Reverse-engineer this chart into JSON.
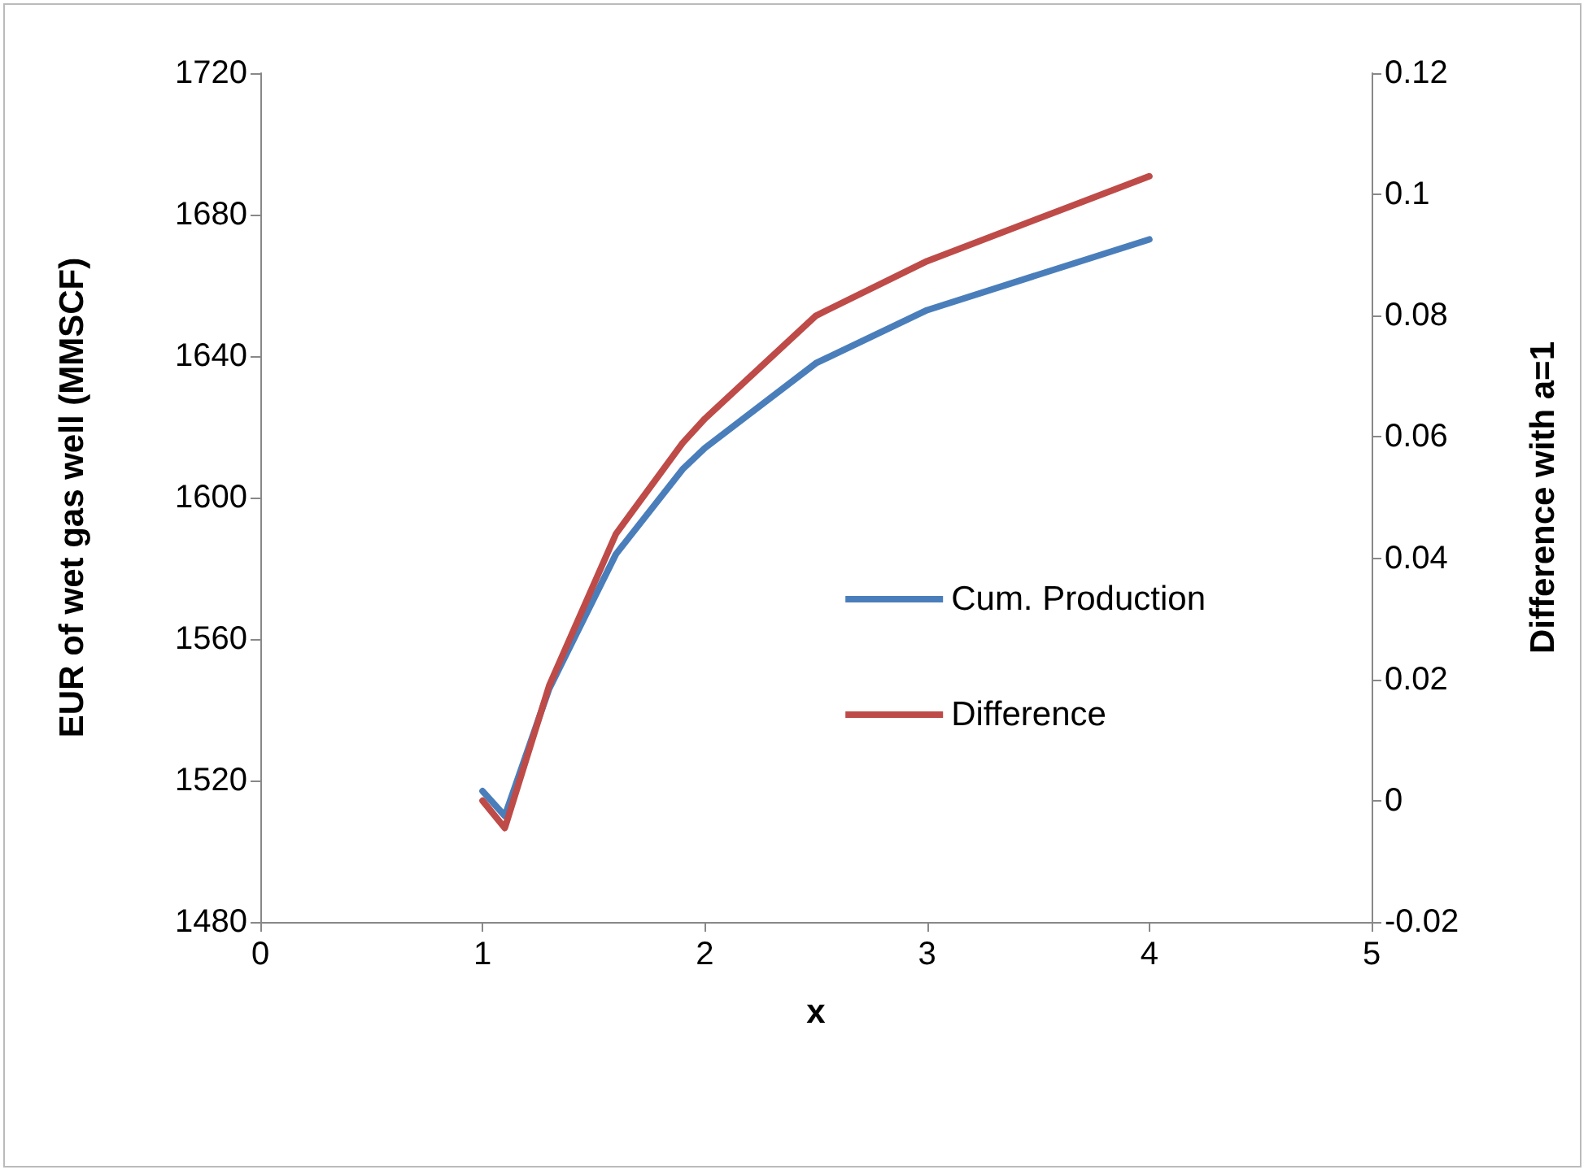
{
  "chart_data": {
    "type": "line",
    "xlabel": "x",
    "ylabel": "EUR of wet gas well (MMSCF)",
    "y2label": "Difference with a=1",
    "xlim": [
      0,
      5
    ],
    "xticks": [
      0,
      1,
      2,
      3,
      4,
      5
    ],
    "ylim": [
      1480,
      1720
    ],
    "yticks": [
      1480,
      1520,
      1560,
      1600,
      1640,
      1680,
      1720
    ],
    "y2lim": [
      -0.02,
      0.12
    ],
    "y2ticks": [
      -0.02,
      0,
      0.02,
      0.04,
      0.06,
      0.08,
      0.1,
      0.12
    ],
    "x": [
      1,
      1.1,
      1.3,
      1.6,
      1.9,
      2,
      2.5,
      3,
      4
    ],
    "series": [
      {
        "name": "Cum. Production",
        "color": "#4a7ebb",
        "values": [
          1517,
          1510,
          1546,
          1584,
          1608,
          1614,
          1638,
          1653,
          1673
        ]
      },
      {
        "name": "Difference",
        "color": "#be4b48",
        "axis": "y2",
        "values": [
          0,
          -0.0045,
          0.019,
          0.044,
          0.059,
          0.063,
          0.08,
          0.089,
          0.103
        ]
      }
    ],
    "grid": false,
    "legend": "right",
    "marker": "none",
    "line_style": "solid"
  }
}
